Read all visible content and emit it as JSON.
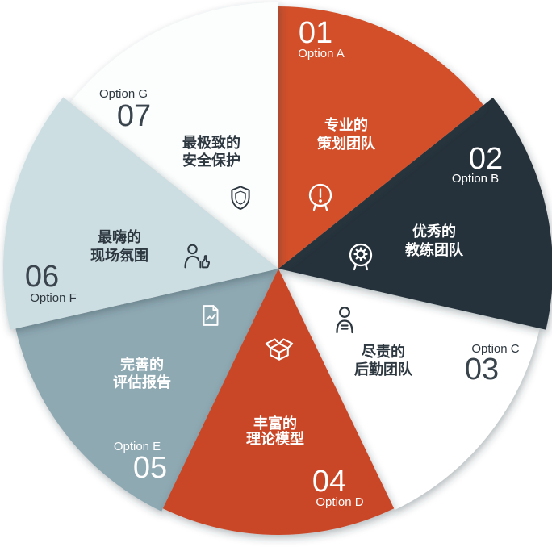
{
  "chart_data": {
    "type": "pie",
    "title": "",
    "legend_position": "none",
    "start_angle": "12 o'clock",
    "order": "clockwise",
    "slice_angle_degrees": 51.43,
    "categories": [
      "Option A",
      "Option B",
      "Option C",
      "Option D",
      "Option E",
      "Option F",
      "Option G"
    ],
    "values": [
      1,
      1,
      1,
      1,
      1,
      1,
      1
    ],
    "segments": [
      {
        "number": "01",
        "option": "Option A",
        "label": "专业的策划团队",
        "label_lines": [
          "专业的",
          "策划团队"
        ],
        "color": "#d2502a",
        "text_color": "#ffffff",
        "icon": "head-exclamation-icon"
      },
      {
        "number": "02",
        "option": "Option B",
        "label": "优秀的教练团队",
        "label_lines": [
          "优秀的",
          "教练团队"
        ],
        "color": "#28323a",
        "text_color": "#ffffff",
        "icon": "head-gear-icon"
      },
      {
        "number": "03",
        "option": "Option C",
        "label": "尽责的后勤团队",
        "label_lines": [
          "尽责的",
          "后勤团队"
        ],
        "color": "#ffffff",
        "text_color": "#2e3840",
        "icon": "person-icon"
      },
      {
        "number": "04",
        "option": "Option D",
        "label": "丰富的理论模型",
        "label_lines": [
          "丰富的",
          "理论模型"
        ],
        "color": "#c94627",
        "text_color": "#ffffff",
        "icon": "open-box-icon"
      },
      {
        "number": "05",
        "option": "Option E",
        "label": "完善的评估报告",
        "label_lines": [
          "完善的",
          "评估报告"
        ],
        "color": "#8fa9b3",
        "text_color": "#ffffff",
        "icon": "report-chart-icon"
      },
      {
        "number": "06",
        "option": "Option F",
        "label": "最嗨的现场氛围",
        "label_lines": [
          "最嗨的",
          "现场氛围"
        ],
        "color": "#cddee2",
        "text_color": "#2e3840",
        "icon": "person-thumbs-up-icon"
      },
      {
        "number": "07",
        "option": "Option G",
        "label": "最极致的安全保护",
        "label_lines": [
          "最极致的",
          "安全保护"
        ],
        "color": "#fcfdfd",
        "text_color": "#2e3840",
        "icon": "shield-icon"
      }
    ]
  }
}
